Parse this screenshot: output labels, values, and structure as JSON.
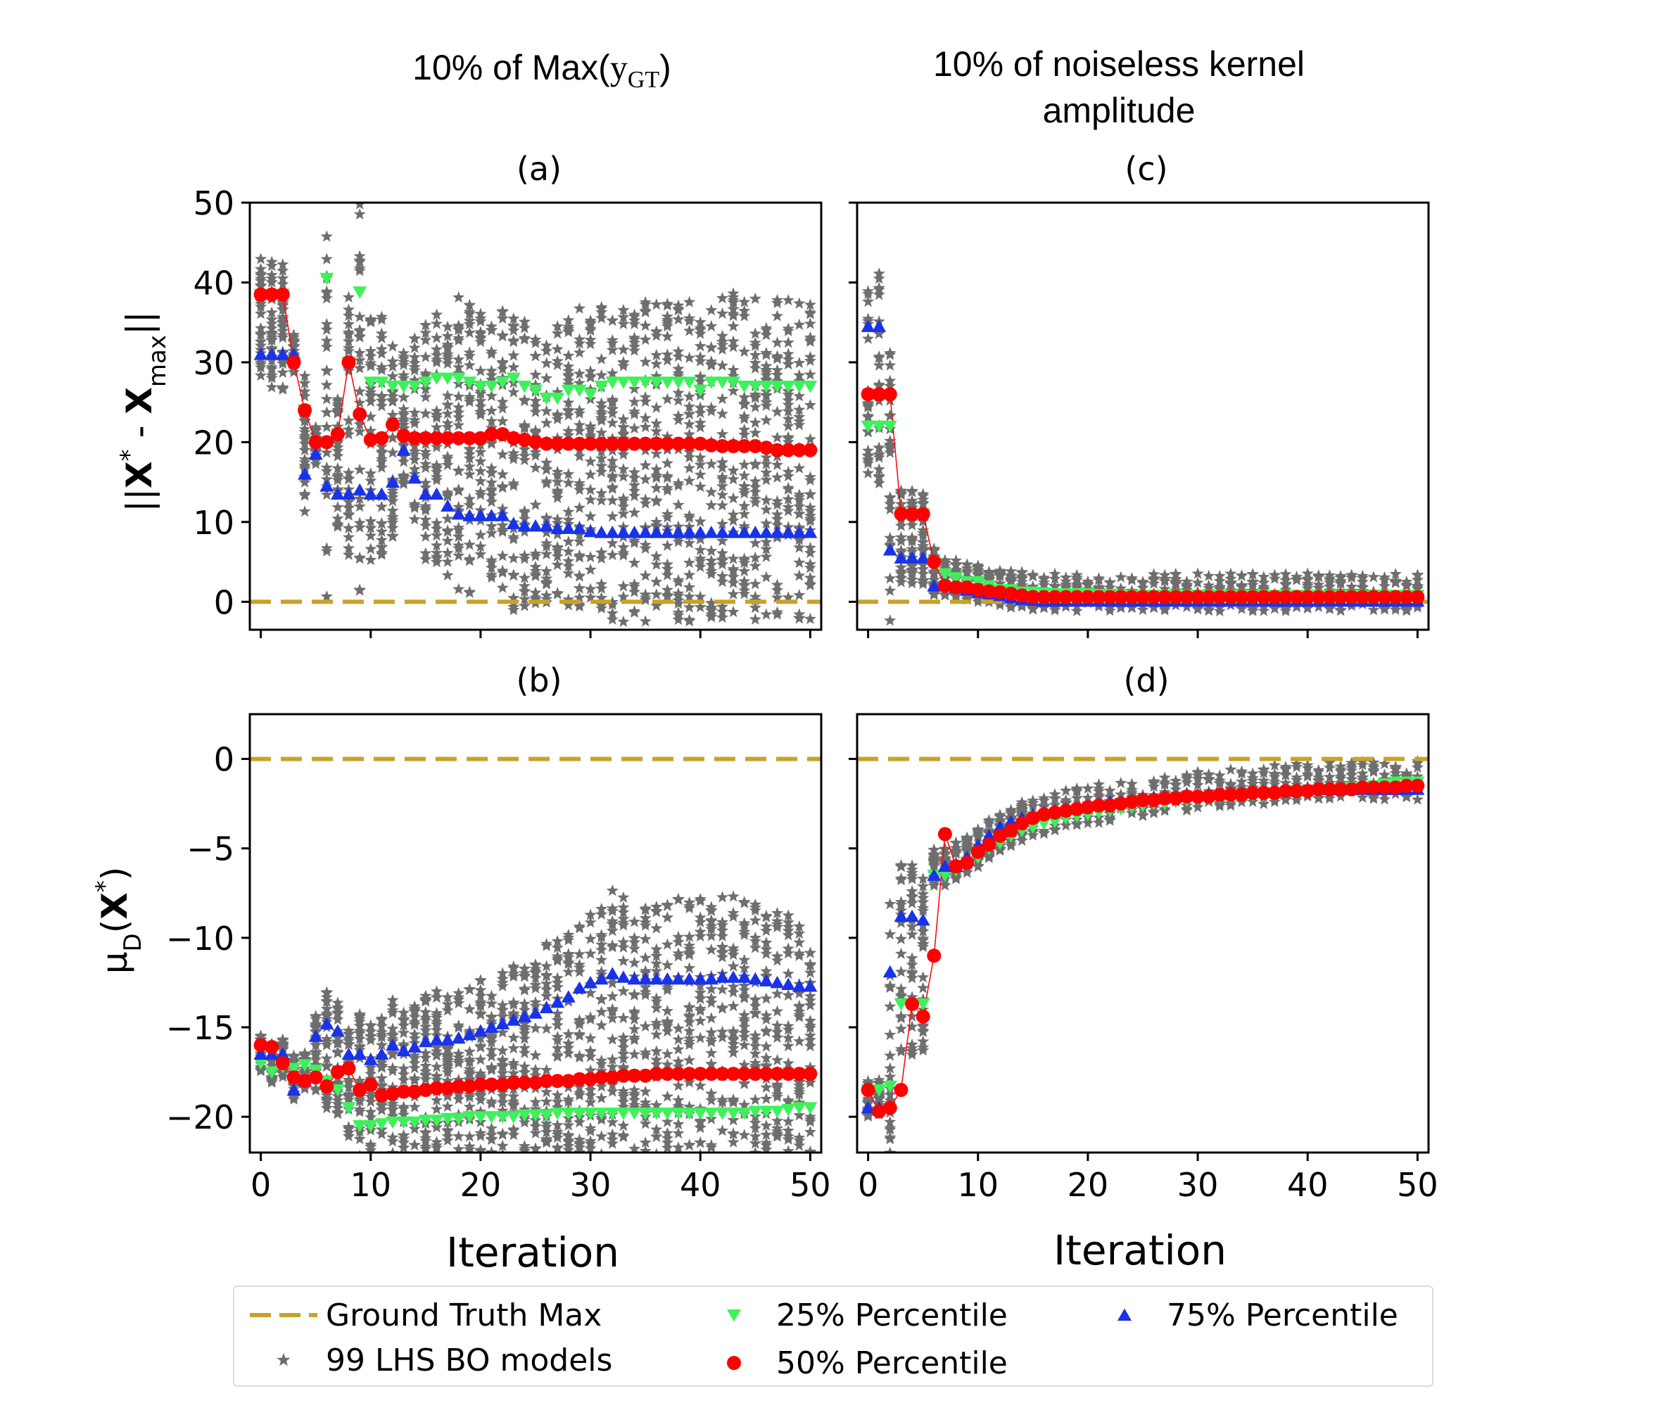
{
  "figure": {
    "col_titles": {
      "left_prefix": "10% of Max(",
      "left_math": "y",
      "left_sub": "GT",
      "left_suffix": ")",
      "right_line1": "10% of noiseless kernel",
      "right_line2": "amplitude"
    },
    "panel_titles": {
      "a": "(a)",
      "b": "(b)",
      "c": "(c)",
      "d": "(d)"
    },
    "ylabels": {
      "top_prefix": "||",
      "top_x": "X",
      "top_star1": "*",
      "top_minus": " - ",
      "top_x2": "X",
      "top_sub": "max",
      "top_suffix": "||",
      "bottom_mu": "μ",
      "bottom_sub": "D",
      "bottom_open": "(",
      "bottom_x": "X",
      "bottom_star": "*",
      "bottom_close": ")"
    },
    "xlabel": "Iteration",
    "colors": {
      "ground_truth": "#C9A227",
      "lhs": "#6E6E6E",
      "p25": "#3CF25A",
      "p50": "#FF0000",
      "p75": "#1A33E8",
      "axis": "#000000"
    }
  },
  "legend": {
    "ground_truth": "Ground Truth Max",
    "lhs": "99 LHS BO models",
    "p25": "25% Percentile",
    "p50": "50% Percentile",
    "p75": "75% Percentile"
  },
  "chart_data": [
    {
      "id": "a",
      "type": "scatter",
      "title": "(a)",
      "xlim": [
        -1,
        51
      ],
      "ylim": [
        -3.5,
        50
      ],
      "xticks": [
        0,
        10,
        20,
        30,
        40,
        50
      ],
      "yticks": [
        0,
        10,
        20,
        30,
        40,
        50
      ],
      "ground_truth": 0,
      "series": [
        {
          "name": "25% Percentile",
          "values": [
            38.5,
            38.5,
            38.5,
            30,
            24,
            20,
            40.5,
            21,
            30,
            38.8,
            27.5,
            27.5,
            27,
            27,
            27,
            27.5,
            28,
            28,
            28,
            27.5,
            27,
            27,
            27.5,
            28,
            27,
            26.5,
            25.5,
            25.5,
            26.5,
            26.5,
            26,
            27,
            27.5,
            27.5,
            27.5,
            27.5,
            27.5,
            27.5,
            27.5,
            27.5,
            26.5,
            27.5,
            27.5,
            27.5,
            27,
            27,
            27,
            27,
            27,
            27,
            27
          ]
        },
        {
          "name": "50% Percentile",
          "values": [
            38.5,
            38.5,
            38.5,
            30,
            24,
            20,
            20,
            21,
            30,
            23.5,
            20.3,
            20.5,
            22.2,
            20.8,
            20.5,
            20.5,
            20.5,
            20.5,
            20.5,
            20.5,
            20.5,
            21,
            21,
            20.5,
            20.3,
            20,
            19.8,
            19.8,
            19.8,
            19.8,
            19.8,
            19.8,
            19.8,
            19.8,
            19.8,
            19.8,
            19.8,
            19.8,
            19.8,
            19.8,
            19.8,
            19.6,
            19.5,
            19.5,
            19.5,
            19.5,
            19.3,
            19,
            19,
            19,
            19
          ]
        },
        {
          "name": "75% Percentile",
          "values": [
            31,
            31,
            31,
            31,
            16,
            18.5,
            14.5,
            13.5,
            13.5,
            14,
            13.5,
            13.5,
            15,
            19,
            15.5,
            13.5,
            13.5,
            12,
            11,
            10.8,
            10.8,
            10.8,
            10.8,
            9.8,
            9.5,
            9.5,
            9.5,
            9.2,
            9.2,
            9.2,
            8.8,
            8.7,
            8.7,
            8.7,
            8.7,
            8.7,
            8.7,
            8.7,
            8.7,
            8.7,
            8.7,
            8.7,
            8.7,
            8.7,
            8.7,
            8.7,
            8.7,
            8.7,
            8.7,
            8.7,
            8.7
          ]
        }
      ]
    },
    {
      "id": "b",
      "type": "scatter",
      "title": "(b)",
      "xlim": [
        -1,
        51
      ],
      "ylim": [
        -22,
        2.5
      ],
      "xticks": [
        0,
        10,
        20,
        30,
        40,
        50
      ],
      "yticks": [
        0,
        -5,
        -10,
        -15,
        -20
      ],
      "ground_truth": 0,
      "series": [
        {
          "name": "25% Percentile",
          "values": [
            -17,
            -17.5,
            -17.2,
            -17.3,
            -17.1,
            -17.4,
            -18,
            -18.5,
            -19.5,
            -20.5,
            -20.5,
            -20.4,
            -20.3,
            -20.3,
            -20.3,
            -20.2,
            -20.2,
            -20.1,
            -20.1,
            -20,
            -20,
            -20,
            -20,
            -20,
            -19.9,
            -19.9,
            -19.9,
            -19.8,
            -19.8,
            -19.8,
            -19.8,
            -19.8,
            -19.8,
            -19.8,
            -19.8,
            -19.8,
            -19.8,
            -19.8,
            -19.8,
            -19.8,
            -19.8,
            -19.8,
            -19.8,
            -19.8,
            -19.8,
            -19.7,
            -19.7,
            -19.7,
            -19.6,
            -19.5,
            -19.5
          ]
        },
        {
          "name": "50% Percentile",
          "values": [
            -16,
            -16.1,
            -17,
            -17.8,
            -18,
            -17.8,
            -18.3,
            -17.5,
            -17.3,
            -18.5,
            -18.2,
            -18.8,
            -18.7,
            -18.6,
            -18.6,
            -18.5,
            -18.4,
            -18.4,
            -18.3,
            -18.3,
            -18.2,
            -18.2,
            -18.2,
            -18.1,
            -18.1,
            -18.1,
            -18,
            -18,
            -18,
            -17.9,
            -17.9,
            -17.8,
            -17.8,
            -17.7,
            -17.7,
            -17.7,
            -17.6,
            -17.6,
            -17.6,
            -17.6,
            -17.6,
            -17.6,
            -17.6,
            -17.6,
            -17.6,
            -17.6,
            -17.6,
            -17.6,
            -17.6,
            -17.6,
            -17.6
          ]
        },
        {
          "name": "75% Percentile",
          "values": [
            -16.5,
            -16.5,
            -16.5,
            -18.5,
            -18,
            -15.5,
            -14.8,
            -15.2,
            -16.5,
            -16.5,
            -16.8,
            -16.5,
            -16,
            -16.3,
            -16.1,
            -15.8,
            -15.7,
            -15.7,
            -15.6,
            -15.4,
            -15.2,
            -15,
            -14.8,
            -14.6,
            -14.4,
            -14.2,
            -13.9,
            -13.6,
            -13.3,
            -12.8,
            -12.5,
            -12.3,
            -12,
            -12.2,
            -12.3,
            -12.3,
            -12.3,
            -12.3,
            -12.3,
            -12.3,
            -12.3,
            -12.3,
            -12.2,
            -12.2,
            -12.2,
            -12.3,
            -12.4,
            -12.5,
            -12.6,
            -12.7,
            -12.7
          ]
        }
      ]
    },
    {
      "id": "c",
      "type": "scatter",
      "title": "(c)",
      "xlim": [
        -1,
        51
      ],
      "ylim": [
        -3.5,
        50
      ],
      "xticks": [
        0,
        10,
        20,
        30,
        40,
        50
      ],
      "yticks": [
        0,
        10,
        20,
        30,
        40,
        50
      ],
      "ground_truth": 0,
      "series": [
        {
          "name": "25% Percentile",
          "values": [
            22,
            22,
            22,
            11,
            11,
            11,
            5,
            3.5,
            3,
            2.5,
            2.5,
            2,
            1.5,
            1.5,
            1.2,
            1.2,
            1.1,
            1,
            1,
            1,
            1,
            0.9,
            0.9,
            0.8,
            0.8,
            0.8,
            0.8,
            0.8,
            0.8,
            0.8,
            0.8,
            0.8,
            0.8,
            0.8,
            0.8,
            0.8,
            0.8,
            0.8,
            0.8,
            0.8,
            0.8,
            0.8,
            0.8,
            0.8,
            0.8,
            0.8,
            0.8,
            0.8,
            0.8,
            0.8,
            0.8
          ]
        },
        {
          "name": "50% Percentile",
          "values": [
            26,
            26,
            26,
            11,
            11,
            11,
            5,
            2,
            1.8,
            1.8,
            1.5,
            1.3,
            1.2,
            1,
            0.8,
            0.6,
            0.6,
            0.6,
            0.6,
            0.6,
            0.6,
            0.6,
            0.6,
            0.6,
            0.6,
            0.6,
            0.6,
            0.6,
            0.6,
            0.6,
            0.6,
            0.6,
            0.6,
            0.6,
            0.6,
            0.6,
            0.6,
            0.6,
            0.6,
            0.6,
            0.6,
            0.6,
            0.6,
            0.6,
            0.6,
            0.6,
            0.6,
            0.6,
            0.6,
            0.6,
            0.6
          ]
        },
        {
          "name": "75% Percentile",
          "values": [
            34.5,
            34.5,
            6.5,
            5.5,
            5.5,
            5.5,
            2,
            2,
            1.8,
            1.5,
            1.2,
            1,
            0.8,
            0.5,
            0.3,
            0.2,
            0.1,
            0.1,
            0.1,
            0.1,
            0.1,
            0.1,
            0.1,
            0.1,
            0.1,
            0.1,
            0.1,
            0.1,
            0.1,
            0.1,
            0.1,
            0.1,
            0.1,
            0.1,
            0.1,
            0.1,
            0.1,
            0.1,
            0.1,
            0.1,
            0.1,
            0.1,
            0.1,
            0.1,
            0.1,
            0.1,
            0.1,
            0.1,
            0.1,
            0.1,
            0.1
          ]
        }
      ]
    },
    {
      "id": "d",
      "type": "scatter",
      "title": "(d)",
      "xlim": [
        -1,
        51
      ],
      "ylim": [
        -22,
        2.5
      ],
      "xticks": [
        0,
        10,
        20,
        30,
        40,
        50
      ],
      "yticks": [
        0,
        -5,
        -10,
        -15,
        -20
      ],
      "ground_truth": 0,
      "series": [
        {
          "name": "25% Percentile",
          "values": [
            -18.5,
            -18.5,
            -18.3,
            -13.7,
            -13.7,
            -13.7,
            -6.5,
            -6.5,
            -6.2,
            -5.8,
            -5.5,
            -5,
            -4.7,
            -4.3,
            -4,
            -3.8,
            -3.6,
            -3.5,
            -3.3,
            -3.2,
            -3.1,
            -3,
            -2.9,
            -2.8,
            -2.7,
            -2.6,
            -2.5,
            -2.5,
            -2.4,
            -2.3,
            -2.2,
            -2.2,
            -2.1,
            -2.1,
            -2,
            -2,
            -2,
            -1.9,
            -1.9,
            -1.8,
            -1.8,
            -1.8,
            -1.7,
            -1.7,
            -1.6,
            -1.6,
            -1.5,
            -1.4,
            -1.3,
            -1.3,
            -1.3
          ]
        },
        {
          "name": "50% Percentile",
          "values": [
            -18.5,
            -19.7,
            -19.5,
            -18.5,
            -13.7,
            -14.4,
            -11,
            -4.2,
            -6,
            -5.8,
            -5.2,
            -4.8,
            -4.3,
            -4,
            -3.6,
            -3.3,
            -3.1,
            -3,
            -2.9,
            -2.8,
            -2.7,
            -2.6,
            -2.6,
            -2.5,
            -2.4,
            -2.3,
            -2.3,
            -2.2,
            -2.2,
            -2.1,
            -2.1,
            -2.1,
            -2,
            -2,
            -2,
            -1.9,
            -1.9,
            -1.9,
            -1.8,
            -1.8,
            -1.8,
            -1.7,
            -1.7,
            -1.7,
            -1.7,
            -1.6,
            -1.6,
            -1.6,
            -1.6,
            -1.5,
            -1.5
          ]
        },
        {
          "name": "75% Percentile",
          "values": [
            -19.5,
            -19.5,
            -11.9,
            -8.8,
            -8.8,
            -9,
            -6.5,
            -6,
            -6,
            -5.5,
            -4.8,
            -4.3,
            -3.8,
            -3.5,
            -3.3,
            -3.1,
            -3,
            -2.9,
            -2.8,
            -2.7,
            -2.6,
            -2.5,
            -2.4,
            -2.4,
            -2.3,
            -2.2,
            -2.2,
            -2.1,
            -2.1,
            -2,
            -2,
            -2,
            -1.9,
            -1.9,
            -1.9,
            -1.8,
            -1.8,
            -1.8,
            -1.8,
            -1.7,
            -1.7,
            -1.7,
            -1.7,
            -1.7,
            -1.7,
            -1.7,
            -1.7,
            -1.7,
            -1.7,
            -1.7,
            -1.7
          ]
        }
      ]
    }
  ]
}
